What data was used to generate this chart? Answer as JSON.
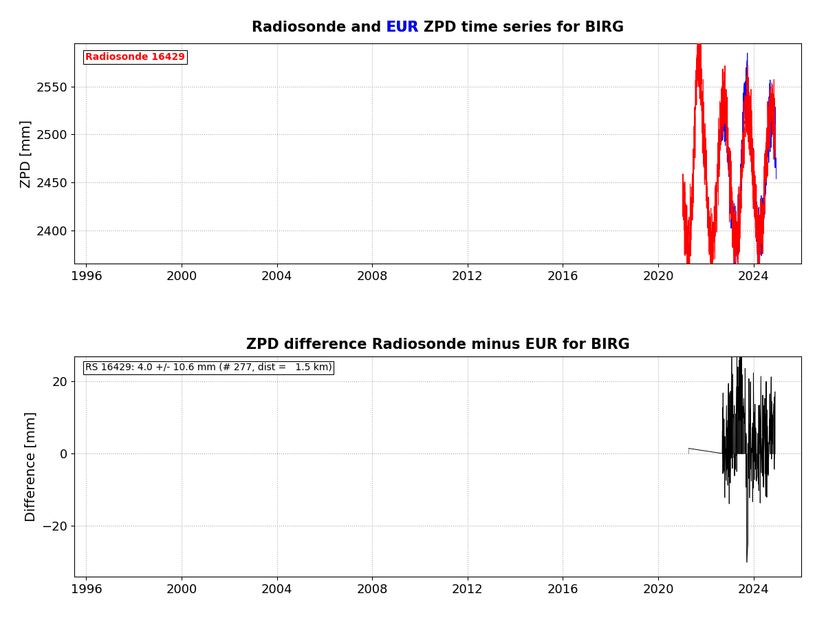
{
  "title1_parts": [
    "Radiosonde and ",
    "EUR",
    " ZPD time series for BIRG"
  ],
  "title1_colors": [
    "black",
    "blue",
    "black"
  ],
  "title2": "ZPD difference Radiosonde minus EUR for BIRG",
  "ylabel1": "ZPD [mm]",
  "ylabel2": "Difference [mm]",
  "xlim": [
    1995.5,
    2026.0
  ],
  "xticks": [
    1996,
    2000,
    2004,
    2008,
    2012,
    2016,
    2020,
    2024
  ],
  "ylim1": [
    2365,
    2595
  ],
  "yticks1": [
    2400,
    2450,
    2500,
    2550
  ],
  "ylim2": [
    -34,
    27
  ],
  "yticks2": [
    -20,
    0,
    20
  ],
  "legend_text": "Radiosonde 16429",
  "legend_color": "red",
  "annotation_text": "RS 16429: 4.0 +/- 10.6 mm (# 277, dist =   1.5 km)",
  "background_color": "white",
  "grid_color": "#aaaaaa",
  "radiosonde_color": "red",
  "eur_color": "blue",
  "diff_color": "black",
  "title_fontsize": 15,
  "label_fontsize": 14,
  "tick_fontsize": 13,
  "annot_fontsize": 10
}
